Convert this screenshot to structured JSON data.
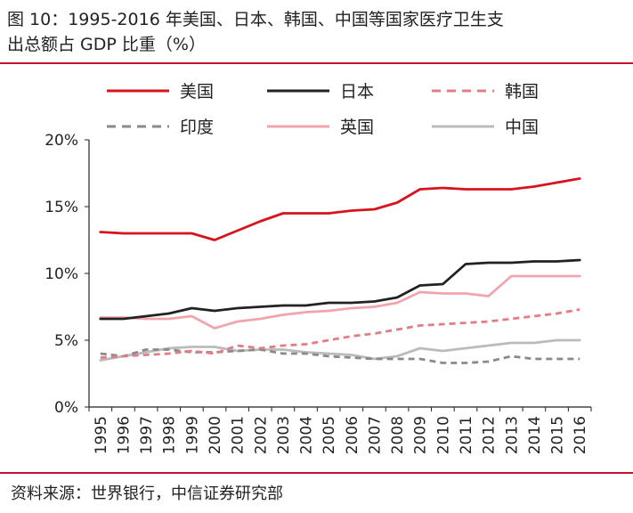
{
  "title_line1": "图 10：1995-2016 年美国、日本、韩国、中国等国家医疗卫生支",
  "title_line2": "出总额占 GDP 比重（%）",
  "source": "资料来源：世界银行，中信证券研究部",
  "chart_data": {
    "type": "line",
    "categories": [
      "1995",
      "1996",
      "1997",
      "1998",
      "1999",
      "2000",
      "2001",
      "2002",
      "2003",
      "2004",
      "2005",
      "2006",
      "2007",
      "2008",
      "2009",
      "2010",
      "2011",
      "2012",
      "2013",
      "2014",
      "2015",
      "2016"
    ],
    "ylim": [
      0,
      20
    ],
    "yticks": [
      "0%",
      "5%",
      "10%",
      "15%",
      "20%"
    ],
    "ytick_values": [
      0,
      5,
      10,
      15,
      20
    ],
    "legend_position": "top",
    "series": [
      {
        "name": "美国",
        "color": "#d7141e",
        "dash": "solid",
        "values": [
          13.1,
          13.0,
          13.0,
          13.0,
          13.0,
          12.5,
          13.2,
          13.9,
          14.5,
          14.5,
          14.5,
          14.7,
          14.8,
          15.3,
          16.3,
          16.4,
          16.3,
          16.3,
          16.3,
          16.5,
          16.8,
          17.1
        ]
      },
      {
        "name": "日本",
        "color": "#222222",
        "dash": "solid",
        "values": [
          6.6,
          6.6,
          6.8,
          7.0,
          7.4,
          7.2,
          7.4,
          7.5,
          7.6,
          7.6,
          7.8,
          7.8,
          7.9,
          8.2,
          9.1,
          9.2,
          10.7,
          10.8,
          10.8,
          10.9,
          10.9,
          11.0
        ]
      },
      {
        "name": "韩国",
        "color": "#e27c86",
        "dash": "dashed",
        "values": [
          3.7,
          3.8,
          3.9,
          4.0,
          4.2,
          4.0,
          4.6,
          4.4,
          4.6,
          4.7,
          5.0,
          5.3,
          5.5,
          5.8,
          6.1,
          6.2,
          6.3,
          6.4,
          6.6,
          6.8,
          7.0,
          7.3
        ]
      },
      {
        "name": "印度",
        "color": "#8a8a8a",
        "dash": "dashed",
        "values": [
          4.0,
          3.8,
          4.3,
          4.3,
          4.1,
          4.1,
          4.2,
          4.3,
          4.0,
          4.0,
          3.8,
          3.7,
          3.6,
          3.6,
          3.6,
          3.3,
          3.3,
          3.4,
          3.8,
          3.6,
          3.6,
          3.6
        ]
      },
      {
        "name": "英国",
        "color": "#f2a4ad",
        "dash": "solid",
        "values": [
          6.7,
          6.7,
          6.6,
          6.6,
          6.8,
          5.9,
          6.4,
          6.6,
          6.9,
          7.1,
          7.2,
          7.4,
          7.5,
          7.8,
          8.6,
          8.5,
          8.5,
          8.3,
          9.8,
          9.8,
          9.8,
          9.8
        ]
      },
      {
        "name": "中国",
        "color": "#bbbbbb",
        "dash": "solid",
        "values": [
          3.5,
          3.8,
          4.1,
          4.4,
          4.5,
          4.5,
          4.2,
          4.3,
          4.3,
          4.1,
          4.0,
          3.9,
          3.6,
          3.8,
          4.4,
          4.2,
          4.4,
          4.6,
          4.8,
          4.8,
          5.0,
          5.0
        ]
      }
    ]
  }
}
